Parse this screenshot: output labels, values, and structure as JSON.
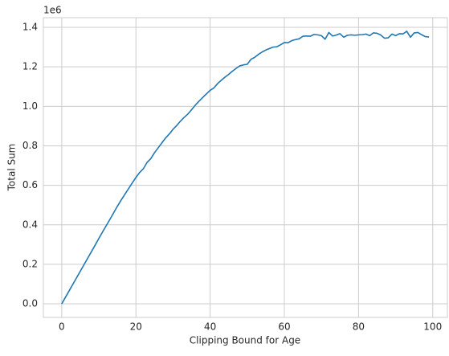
{
  "chart_data": {
    "type": "line",
    "xlabel": "Clipping Bound for Age",
    "ylabel": "Total Sum",
    "y_offset_label": "1e6",
    "x": [
      0,
      1,
      2,
      3,
      4,
      5,
      6,
      7,
      8,
      9,
      10,
      11,
      12,
      13,
      14,
      15,
      16,
      17,
      18,
      19,
      20,
      21,
      22,
      23,
      24,
      25,
      26,
      27,
      28,
      29,
      30,
      31,
      32,
      33,
      34,
      35,
      36,
      37,
      38,
      39,
      40,
      41,
      42,
      43,
      44,
      45,
      46,
      47,
      48,
      49,
      50,
      51,
      52,
      53,
      54,
      55,
      56,
      57,
      58,
      59,
      60,
      61,
      62,
      63,
      64,
      65,
      66,
      67,
      68,
      69,
      70,
      71,
      72,
      73,
      74,
      75,
      76,
      77,
      78,
      79,
      80,
      81,
      82,
      83,
      84,
      85,
      86,
      87,
      88,
      89,
      90,
      91,
      92,
      93,
      94,
      95,
      96,
      97,
      98,
      99
    ],
    "series": [
      {
        "color": "#1f77b4",
        "values": [
          0.0,
          0.033,
          0.066,
          0.099,
          0.132,
          0.165,
          0.198,
          0.231,
          0.264,
          0.297,
          0.331,
          0.364,
          0.396,
          0.428,
          0.461,
          0.494,
          0.525,
          0.554,
          0.583,
          0.612,
          0.64,
          0.665,
          0.684,
          0.716,
          0.735,
          0.765,
          0.79,
          0.815,
          0.84,
          0.86,
          0.884,
          0.903,
          0.925,
          0.944,
          0.961,
          0.983,
          1.006,
          1.026,
          1.045,
          1.063,
          1.081,
          1.093,
          1.115,
          1.132,
          1.148,
          1.162,
          1.178,
          1.192,
          1.205,
          1.21,
          1.213,
          1.238,
          1.248,
          1.263,
          1.275,
          1.285,
          1.293,
          1.3,
          1.302,
          1.312,
          1.323,
          1.322,
          1.333,
          1.338,
          1.342,
          1.355,
          1.356,
          1.355,
          1.364,
          1.362,
          1.358,
          1.34,
          1.374,
          1.356,
          1.361,
          1.368,
          1.35,
          1.36,
          1.362,
          1.36,
          1.362,
          1.363,
          1.366,
          1.358,
          1.372,
          1.37,
          1.361,
          1.345,
          1.347,
          1.366,
          1.358,
          1.368,
          1.367,
          1.38,
          1.35,
          1.372,
          1.374,
          1.363,
          1.353,
          1.351
        ]
      }
    ],
    "xlim": [
      -4.95,
      103.95
    ],
    "ylim": [
      -0.069,
      1.449
    ],
    "xticks": [
      0,
      20,
      40,
      60,
      80,
      100
    ],
    "yticks": [
      {
        "value": 0,
        "label": "0.0"
      },
      0.2,
      0.4,
      0.6,
      0.8,
      {
        "value": 1,
        "label": "1.0"
      },
      1.2,
      1.4
    ],
    "grid": true
  }
}
